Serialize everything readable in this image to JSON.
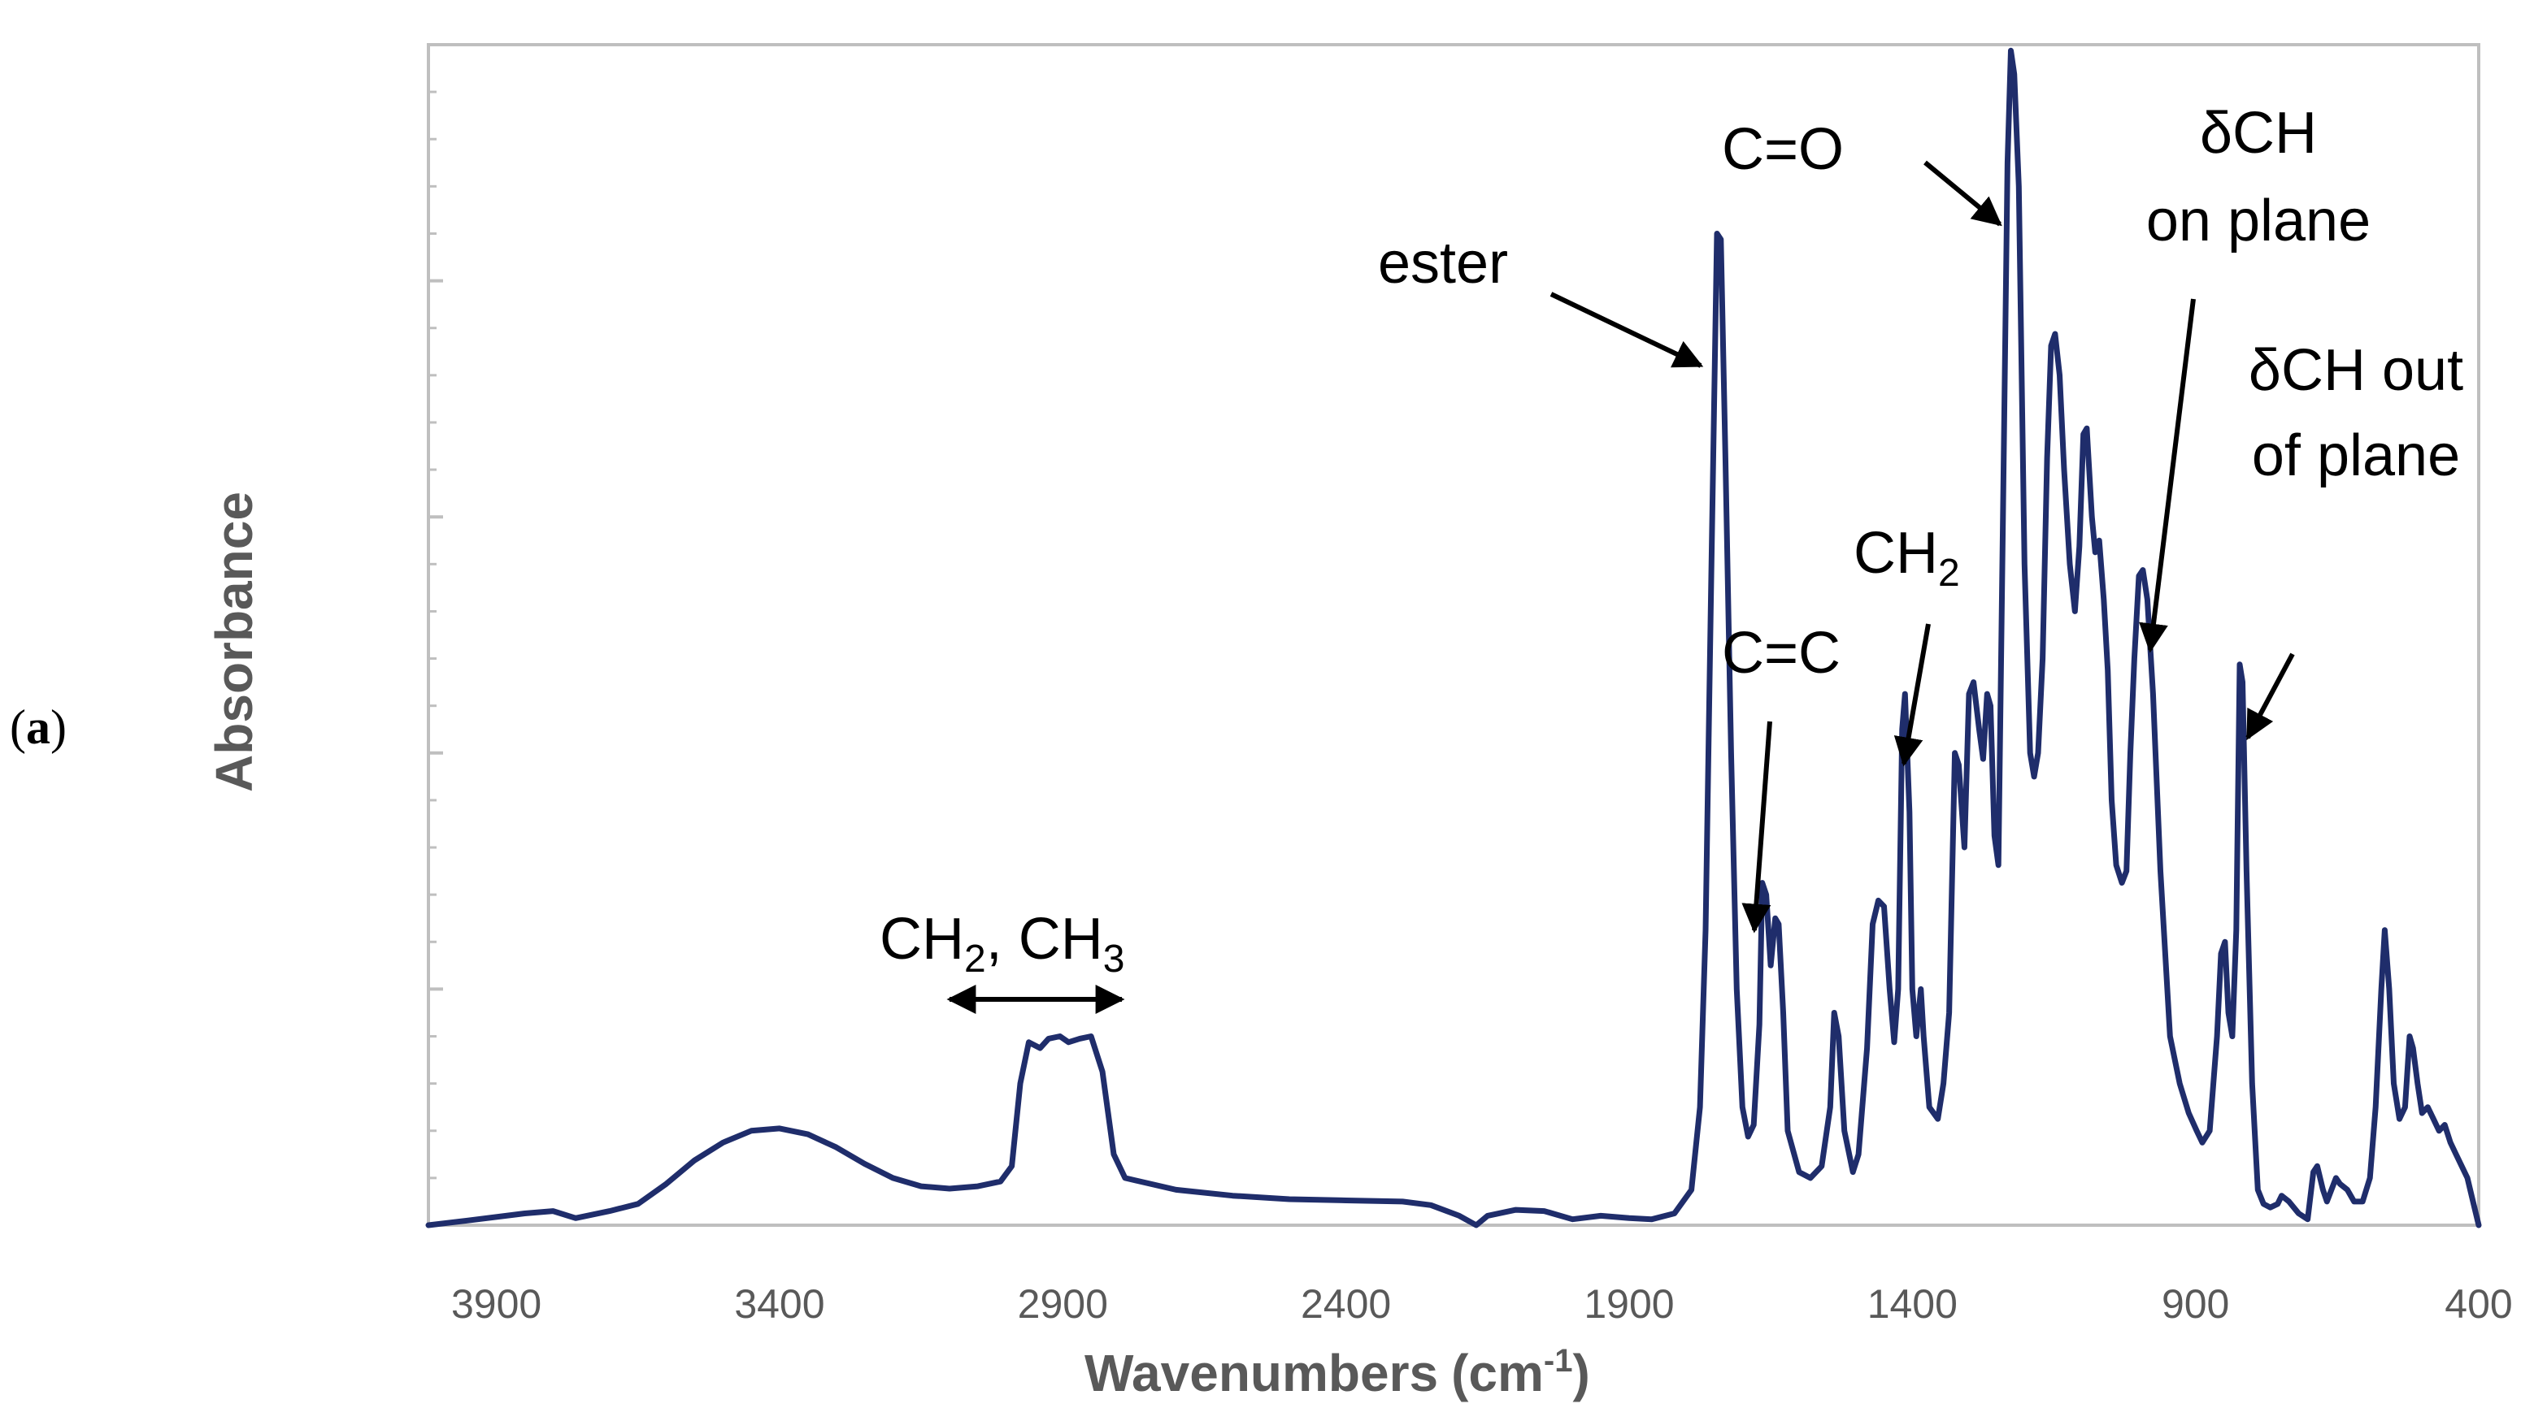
{
  "panel_label": {
    "open": "(",
    "letter": "a",
    "close": ")"
  },
  "chart_data": {
    "type": "line",
    "title": "",
    "xlabel": "Wavenumbers",
    "xlabel_unit_prefix": "(cm",
    "xlabel_unit_exp": "-1",
    "xlabel_unit_suffix": ")",
    "ylabel": "Absorbance",
    "xlim": [
      4020,
      400
    ],
    "x_reversed": true,
    "ylim": [
      0,
      1.0
    ],
    "x_ticks": [
      3900,
      3400,
      2900,
      2400,
      1900,
      1400,
      900,
      400
    ],
    "y_major_ticks": [
      0,
      0.2,
      0.4,
      0.6,
      0.8,
      1.0
    ],
    "y_minor_step": 0.04,
    "grid": false,
    "legend": "none",
    "line_color": "#1f2d6b",
    "annotation_color": "#000000",
    "series": [
      {
        "points": [
          [
            4020,
            0.0
          ],
          [
            3950,
            0.004
          ],
          [
            3850,
            0.01
          ],
          [
            3800,
            0.012
          ],
          [
            3760,
            0.006
          ],
          [
            3700,
            0.012
          ],
          [
            3650,
            0.018
          ],
          [
            3600,
            0.035
          ],
          [
            3550,
            0.055
          ],
          [
            3500,
            0.07
          ],
          [
            3450,
            0.08
          ],
          [
            3400,
            0.082
          ],
          [
            3350,
            0.077
          ],
          [
            3300,
            0.066
          ],
          [
            3250,
            0.052
          ],
          [
            3200,
            0.04
          ],
          [
            3150,
            0.033
          ],
          [
            3100,
            0.031
          ],
          [
            3050,
            0.033
          ],
          [
            3010,
            0.037
          ],
          [
            2990,
            0.05
          ],
          [
            2975,
            0.12
          ],
          [
            2960,
            0.155
          ],
          [
            2940,
            0.15
          ],
          [
            2925,
            0.158
          ],
          [
            2905,
            0.16
          ],
          [
            2890,
            0.155
          ],
          [
            2870,
            0.158
          ],
          [
            2850,
            0.16
          ],
          [
            2830,
            0.13
          ],
          [
            2810,
            0.06
          ],
          [
            2790,
            0.04
          ],
          [
            2700,
            0.03
          ],
          [
            2600,
            0.025
          ],
          [
            2500,
            0.022
          ],
          [
            2400,
            0.021
          ],
          [
            2300,
            0.02
          ],
          [
            2250,
            0.017
          ],
          [
            2200,
            0.008
          ],
          [
            2170,
            0.0
          ],
          [
            2150,
            0.008
          ],
          [
            2100,
            0.013
          ],
          [
            2050,
            0.012
          ],
          [
            2000,
            0.005
          ],
          [
            1950,
            0.008
          ],
          [
            1900,
            0.006
          ],
          [
            1860,
            0.005
          ],
          [
            1820,
            0.01
          ],
          [
            1790,
            0.03
          ],
          [
            1775,
            0.1
          ],
          [
            1765,
            0.25
          ],
          [
            1755,
            0.55
          ],
          [
            1745,
            0.84
          ],
          [
            1738,
            0.835
          ],
          [
            1730,
            0.65
          ],
          [
            1720,
            0.4
          ],
          [
            1710,
            0.2
          ],
          [
            1700,
            0.1
          ],
          [
            1690,
            0.075
          ],
          [
            1680,
            0.085
          ],
          [
            1670,
            0.17
          ],
          [
            1665,
            0.29
          ],
          [
            1658,
            0.28
          ],
          [
            1650,
            0.22
          ],
          [
            1642,
            0.26
          ],
          [
            1636,
            0.255
          ],
          [
            1628,
            0.18
          ],
          [
            1620,
            0.08
          ],
          [
            1600,
            0.045
          ],
          [
            1580,
            0.04
          ],
          [
            1560,
            0.05
          ],
          [
            1545,
            0.1
          ],
          [
            1538,
            0.18
          ],
          [
            1530,
            0.16
          ],
          [
            1520,
            0.08
          ],
          [
            1505,
            0.045
          ],
          [
            1495,
            0.06
          ],
          [
            1480,
            0.15
          ],
          [
            1470,
            0.255
          ],
          [
            1460,
            0.275
          ],
          [
            1450,
            0.27
          ],
          [
            1440,
            0.2
          ],
          [
            1432,
            0.155
          ],
          [
            1425,
            0.2
          ],
          [
            1418,
            0.42
          ],
          [
            1413,
            0.45
          ],
          [
            1405,
            0.35
          ],
          [
            1400,
            0.2
          ],
          [
            1393,
            0.16
          ],
          [
            1385,
            0.2
          ],
          [
            1380,
            0.16
          ],
          [
            1370,
            0.1
          ],
          [
            1355,
            0.09
          ],
          [
            1345,
            0.12
          ],
          [
            1335,
            0.18
          ],
          [
            1325,
            0.4
          ],
          [
            1318,
            0.39
          ],
          [
            1308,
            0.32
          ],
          [
            1300,
            0.45
          ],
          [
            1292,
            0.46
          ],
          [
            1282,
            0.42
          ],
          [
            1275,
            0.395
          ],
          [
            1268,
            0.45
          ],
          [
            1262,
            0.44
          ],
          [
            1255,
            0.33
          ],
          [
            1248,
            0.305
          ],
          [
            1240,
            0.6
          ],
          [
            1232,
            0.9
          ],
          [
            1226,
            0.995
          ],
          [
            1220,
            0.975
          ],
          [
            1212,
            0.88
          ],
          [
            1202,
            0.56
          ],
          [
            1192,
            0.4
          ],
          [
            1185,
            0.38
          ],
          [
            1178,
            0.4
          ],
          [
            1170,
            0.48
          ],
          [
            1162,
            0.65
          ],
          [
            1155,
            0.745
          ],
          [
            1148,
            0.755
          ],
          [
            1140,
            0.72
          ],
          [
            1132,
            0.64
          ],
          [
            1122,
            0.56
          ],
          [
            1113,
            0.52
          ],
          [
            1105,
            0.575
          ],
          [
            1098,
            0.67
          ],
          [
            1092,
            0.675
          ],
          [
            1083,
            0.6
          ],
          [
            1077,
            0.57
          ],
          [
            1070,
            0.58
          ],
          [
            1062,
            0.53
          ],
          [
            1055,
            0.47
          ],
          [
            1048,
            0.36
          ],
          [
            1040,
            0.305
          ],
          [
            1030,
            0.29
          ],
          [
            1022,
            0.3
          ],
          [
            1015,
            0.4
          ],
          [
            1008,
            0.48
          ],
          [
            1000,
            0.55
          ],
          [
            993,
            0.555
          ],
          [
            985,
            0.53
          ],
          [
            975,
            0.45
          ],
          [
            962,
            0.3
          ],
          [
            945,
            0.16
          ],
          [
            928,
            0.12
          ],
          [
            912,
            0.095
          ],
          [
            898,
            0.08
          ],
          [
            888,
            0.07
          ],
          [
            875,
            0.08
          ],
          [
            862,
            0.16
          ],
          [
            855,
            0.23
          ],
          [
            848,
            0.24
          ],
          [
            842,
            0.18
          ],
          [
            835,
            0.16
          ],
          [
            828,
            0.25
          ],
          [
            822,
            0.475
          ],
          [
            817,
            0.46
          ],
          [
            810,
            0.3
          ],
          [
            800,
            0.12
          ],
          [
            790,
            0.03
          ],
          [
            780,
            0.018
          ],
          [
            768,
            0.015
          ],
          [
            755,
            0.018
          ],
          [
            748,
            0.025
          ],
          [
            735,
            0.02
          ],
          [
            718,
            0.01
          ],
          [
            702,
            0.005
          ],
          [
            692,
            0.045
          ],
          [
            685,
            0.05
          ],
          [
            675,
            0.03
          ],
          [
            668,
            0.02
          ],
          [
            652,
            0.04
          ],
          [
            645,
            0.035
          ],
          [
            632,
            0.03
          ],
          [
            620,
            0.02
          ],
          [
            605,
            0.02
          ],
          [
            592,
            0.04
          ],
          [
            582,
            0.1
          ],
          [
            572,
            0.2
          ],
          [
            566,
            0.25
          ],
          [
            558,
            0.2
          ],
          [
            550,
            0.12
          ],
          [
            540,
            0.09
          ],
          [
            530,
            0.1
          ],
          [
            522,
            0.16
          ],
          [
            516,
            0.15
          ],
          [
            508,
            0.12
          ],
          [
            500,
            0.095
          ],
          [
            490,
            0.1
          ],
          [
            480,
            0.09
          ],
          [
            470,
            0.08
          ],
          [
            460,
            0.085
          ],
          [
            450,
            0.07
          ],
          [
            440,
            0.06
          ],
          [
            430,
            0.05
          ],
          [
            420,
            0.04
          ],
          [
            410,
            0.02
          ],
          [
            400,
            0.0
          ]
        ]
      }
    ],
    "annotations": {
      "ch2_ch3": {
        "part1": "CH",
        "sub1": "2",
        "part2": ", CH",
        "sub2": "3"
      },
      "ester": "ester",
      "ceqc": "C=C",
      "ch2": {
        "base": "CH",
        "sub": "2"
      },
      "ceqo": "C=O",
      "dch_on_plane": {
        "line1": "δCH",
        "line2": "on plane"
      },
      "dch_out_of_plane": {
        "line1": "δCH out",
        "line2": "of plane"
      }
    }
  }
}
